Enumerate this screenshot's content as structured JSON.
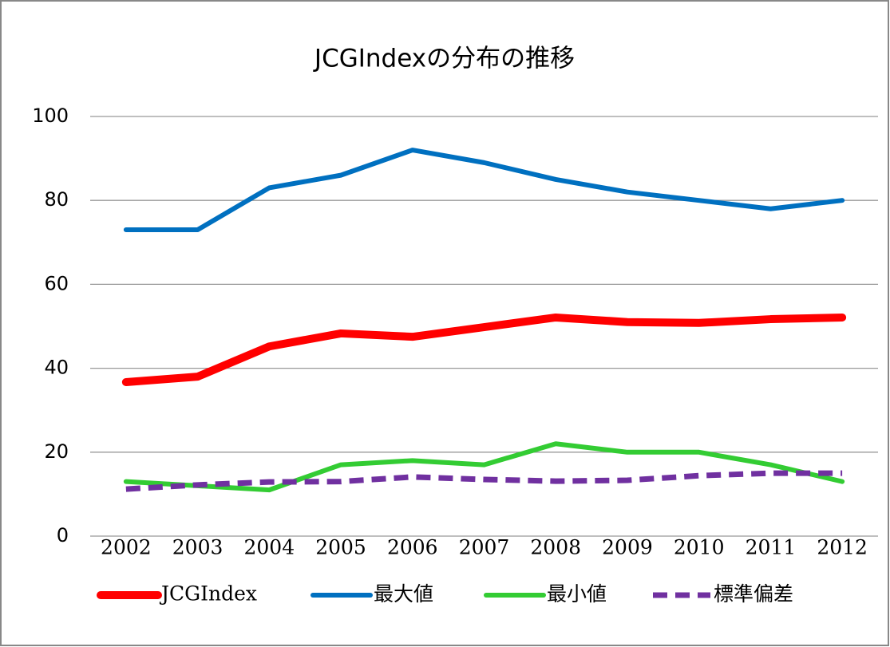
{
  "chart_data": {
    "type": "line",
    "title": "JCGIndexの分布の推移",
    "categories": [
      "2002",
      "2003",
      "2004",
      "2005",
      "2006",
      "2007",
      "2008",
      "2009",
      "2010",
      "2011",
      "2012"
    ],
    "series": [
      {
        "name": "JCGIndex",
        "color": "#ff0000",
        "dashed": false,
        "values": [
          36.7,
          38,
          45.2,
          48.3,
          47.5,
          49.8,
          52.1,
          51,
          50.8,
          51.7,
          52.1
        ]
      },
      {
        "name": "最大値",
        "color": "#0070c0",
        "dashed": false,
        "values": [
          73,
          73,
          83,
          86,
          92,
          89,
          85,
          82,
          80,
          78,
          80
        ]
      },
      {
        "name": "最小値",
        "color": "#33cc33",
        "dashed": false,
        "values": [
          13,
          12,
          11,
          17,
          18,
          17,
          22,
          20,
          20,
          17,
          13
        ]
      },
      {
        "name": "標準偏差",
        "color": "#7030a0",
        "dashed": true,
        "values": [
          11.2,
          12.2,
          12.9,
          13,
          14.1,
          13.5,
          13.1,
          13.3,
          14.4,
          15,
          15
        ]
      }
    ],
    "ylim": [
      0,
      100
    ],
    "yticks": [
      0,
      20,
      40,
      60,
      80,
      100
    ],
    "grid": true,
    "legend": "bottom"
  }
}
